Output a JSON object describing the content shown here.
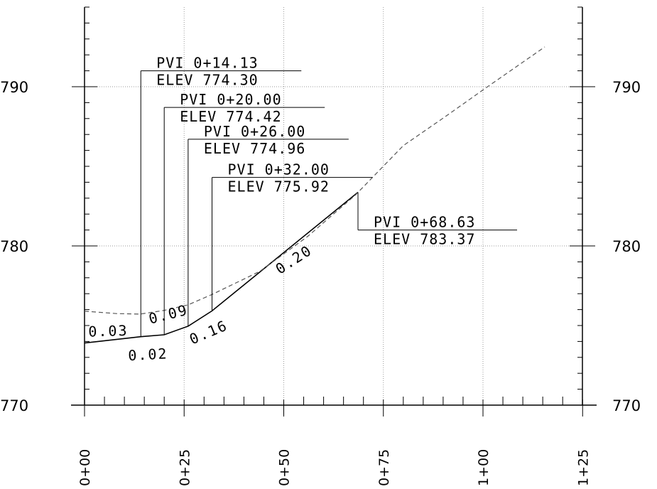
{
  "chart_data": {
    "type": "line",
    "x_unit": "station",
    "xlim": [
      0,
      125
    ],
    "ylim": [
      770,
      795
    ],
    "grid": true,
    "y_ticks": [
      {
        "value": 770,
        "label": "770"
      },
      {
        "value": 780,
        "label": "780"
      },
      {
        "value": 790,
        "label": "790"
      }
    ],
    "x_ticks": [
      {
        "value": 0,
        "label": "0+00"
      },
      {
        "value": 25,
        "label": "0+25"
      },
      {
        "value": 50,
        "label": "0+50"
      },
      {
        "value": 75,
        "label": "0+75"
      },
      {
        "value": 100,
        "label": "1+00"
      },
      {
        "value": 125,
        "label": "1+25"
      }
    ],
    "series": [
      {
        "style": "solid",
        "points": [
          [
            0,
            773.9
          ],
          [
            14.13,
            774.3
          ],
          [
            20.0,
            774.42
          ],
          [
            26.0,
            774.96
          ],
          [
            32.0,
            775.92
          ],
          [
            68.63,
            783.37
          ]
        ]
      },
      {
        "style": "dashed",
        "points": [
          [
            0,
            775.9
          ],
          [
            8,
            775.75
          ],
          [
            14,
            775.72
          ],
          [
            20,
            775.95
          ],
          [
            26,
            776.3
          ],
          [
            32,
            776.95
          ],
          [
            44,
            778.4
          ],
          [
            56,
            780.6
          ],
          [
            68,
            783.2
          ],
          [
            80,
            786.3
          ],
          [
            91,
            788.2
          ],
          [
            100,
            789.8
          ],
          [
            115.5,
            792.5
          ]
        ]
      }
    ],
    "pvi_labels": [
      {
        "station": 14.13,
        "pvi": "PVI 0+14.13",
        "elev": "ELEV 774.30",
        "leader_top": 791.0
      },
      {
        "station": 20.0,
        "pvi": "PVI 0+20.00",
        "elev": "ELEV 774.42",
        "leader_top": 788.7
      },
      {
        "station": 26.0,
        "pvi": "PVI 0+26.00",
        "elev": "ELEV 774.96",
        "leader_top": 786.7
      },
      {
        "station": 32.0,
        "pvi": "PVI 0+32.00",
        "elev": "ELEV 775.92",
        "leader_top": 784.3
      },
      {
        "station": 68.63,
        "pvi": "PVI 0+68.63",
        "elev": "ELEV 783.37",
        "leader_top": 781.0
      }
    ],
    "grade_labels": [
      {
        "text": "0.03",
        "x": 1.0,
        "y": 774.3,
        "angle": -2
      },
      {
        "text": "0.02",
        "x": 11.0,
        "y": 772.8,
        "angle": -3
      },
      {
        "text": "0.09",
        "x": 16.5,
        "y": 775.1,
        "angle": -14
      },
      {
        "text": "0.16",
        "x": 27.0,
        "y": 773.8,
        "angle": -23
      },
      {
        "text": "0.20",
        "x": 49.0,
        "y": 778.2,
        "angle": -33
      }
    ]
  }
}
